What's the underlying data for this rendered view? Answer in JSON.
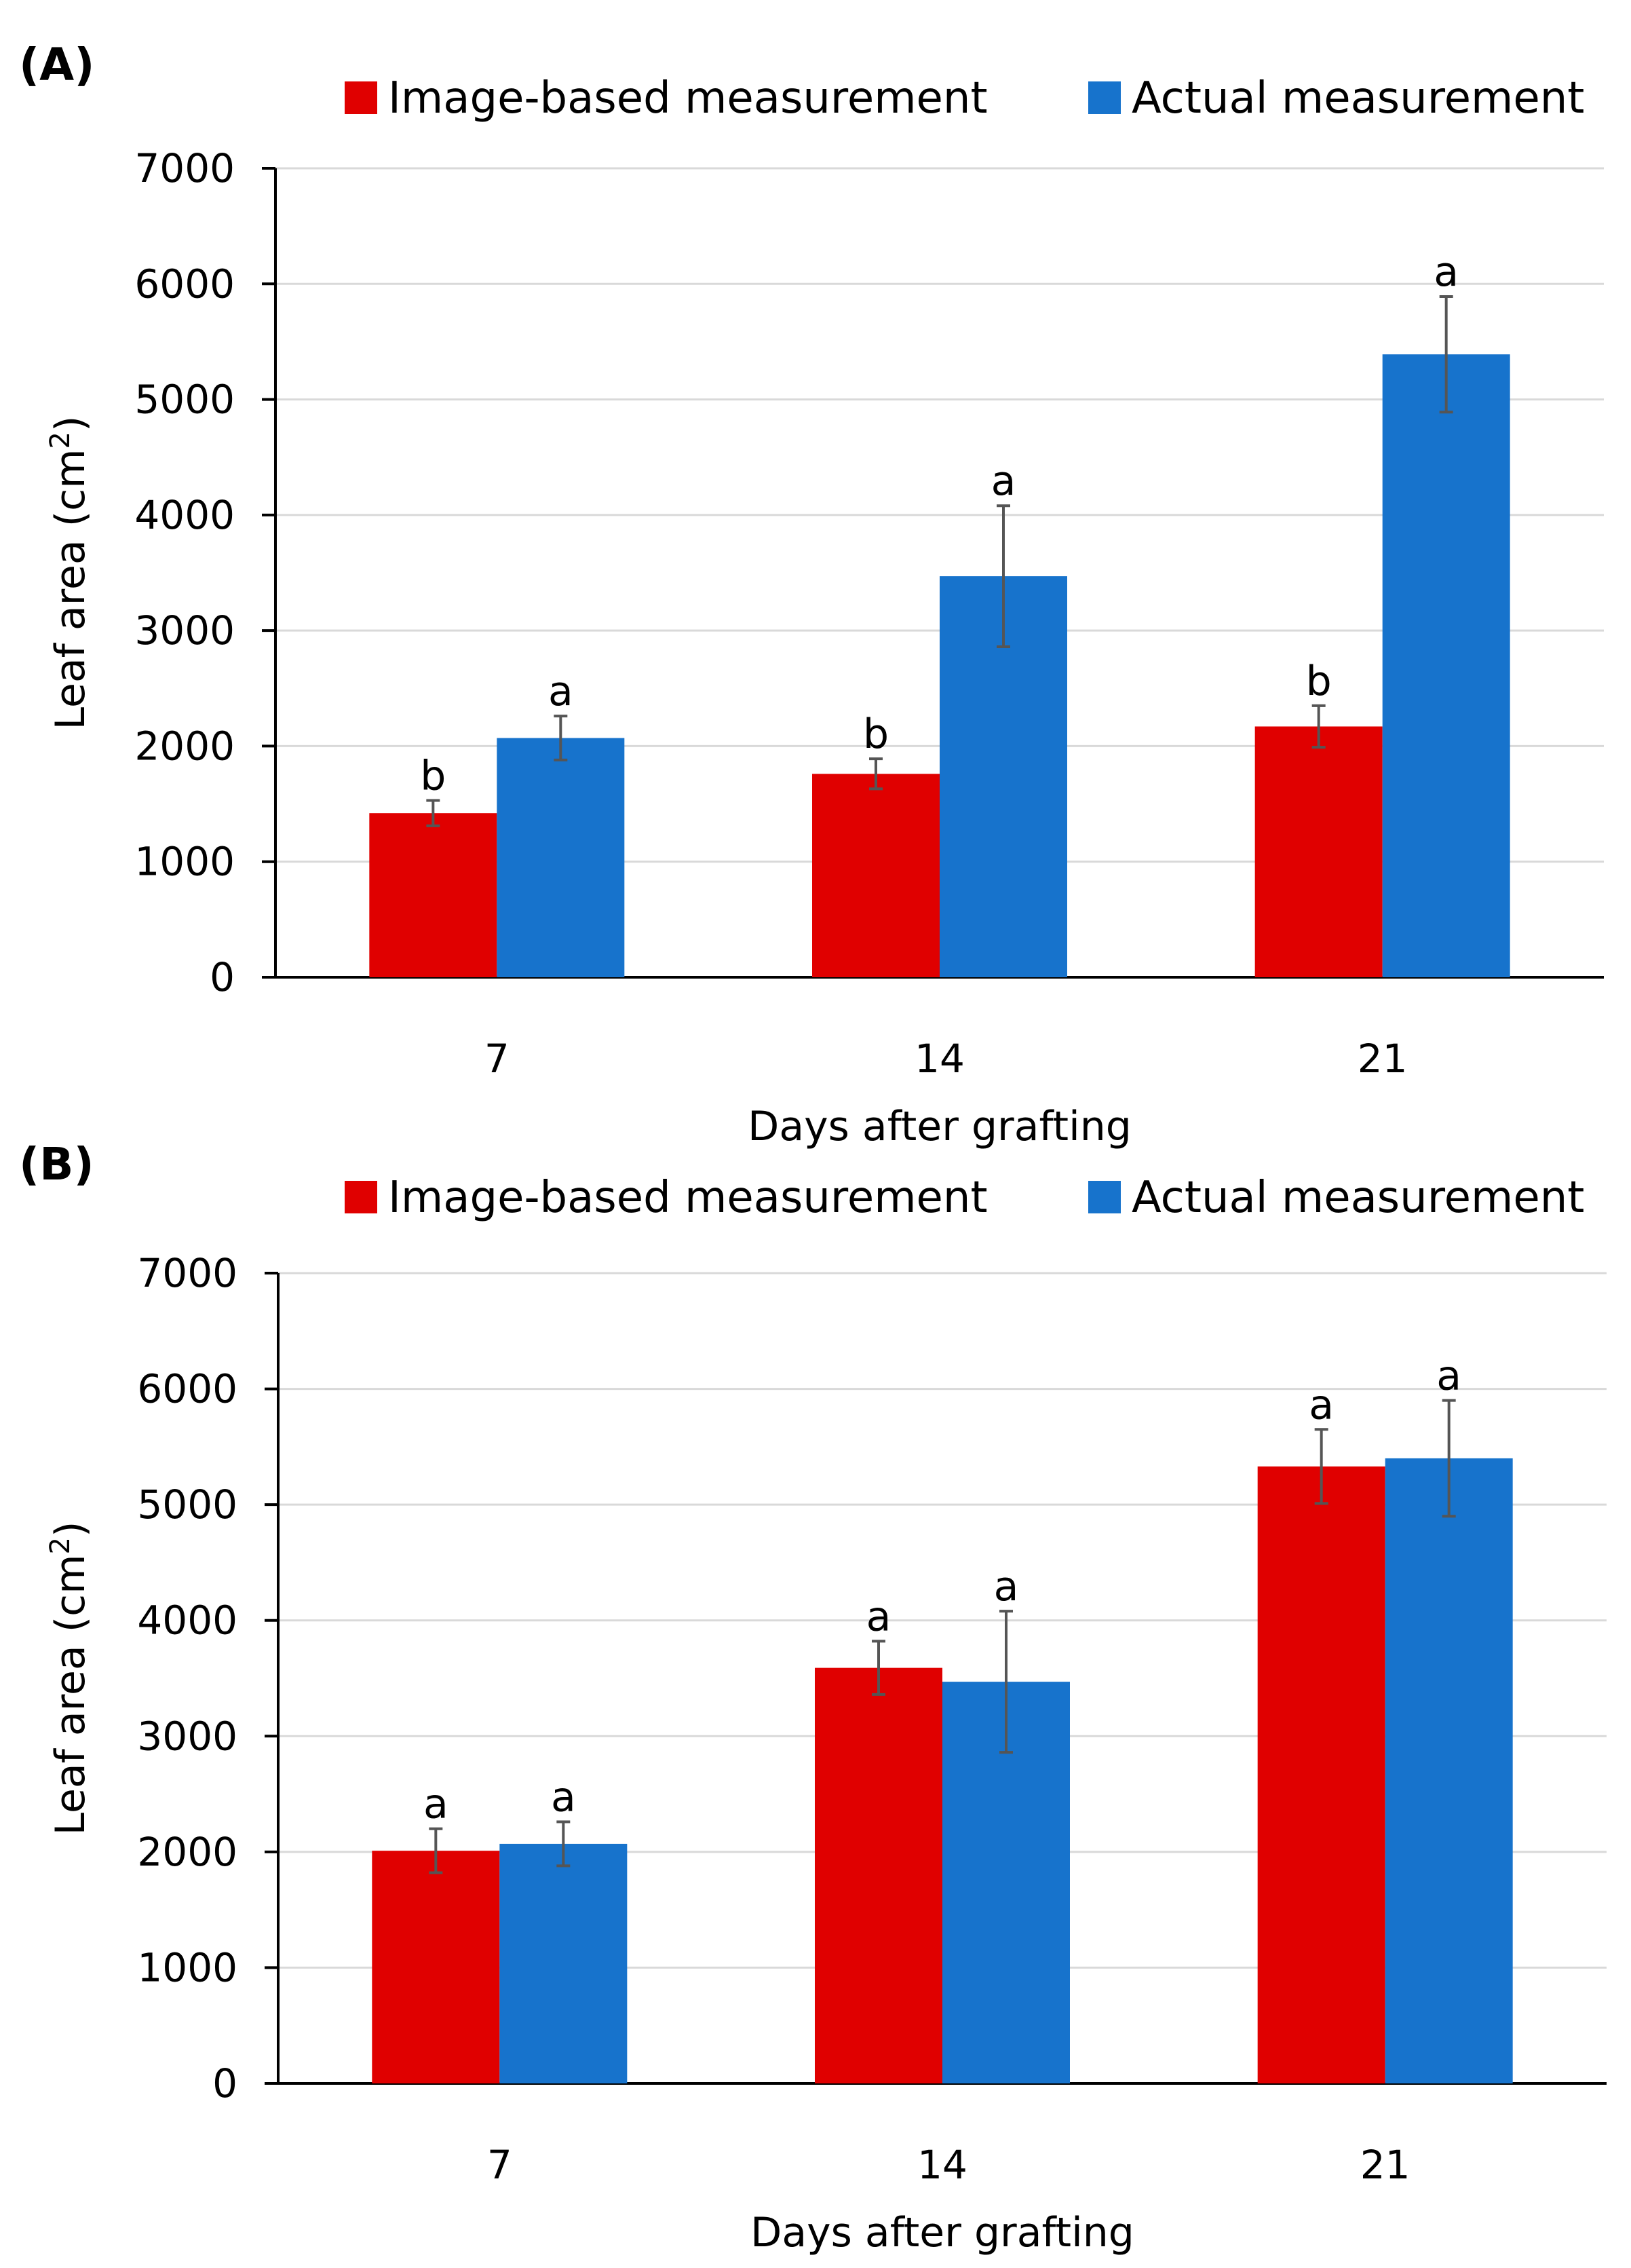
{
  "chart_data": [
    {
      "panel_label": "(A)",
      "type": "bar",
      "categories": [
        "7",
        "14",
        "21"
      ],
      "series": [
        {
          "name": "Image-based measurement",
          "color": "#E00000",
          "values": [
            1420,
            1760,
            2170
          ],
          "errors": [
            110,
            130,
            180
          ],
          "significance": [
            "b",
            "b",
            "b"
          ]
        },
        {
          "name": "Actual measurement",
          "color": "#1773CC",
          "values": [
            2070,
            3470,
            5390
          ],
          "errors": [
            190,
            610,
            500
          ],
          "significance": [
            "a",
            "a",
            "a"
          ]
        }
      ],
      "xlabel": "Days after grafting",
      "ylabel_main": "Leaf area (cm",
      "ylabel_sup": "2",
      "ylabel_tail": ")",
      "ylim": [
        0,
        7000
      ],
      "yticks": [
        "0",
        "1000",
        "2000",
        "3000",
        "4000",
        "5000",
        "6000",
        "7000"
      ],
      "grid": true,
      "legend_position": "top"
    },
    {
      "panel_label": "(B)",
      "type": "bar",
      "categories": [
        "7",
        "14",
        "21"
      ],
      "series": [
        {
          "name": "Image-based measurement",
          "color": "#E00000",
          "values": [
            2010,
            3590,
            5330
          ],
          "errors": [
            190,
            230,
            320
          ],
          "significance": [
            "a",
            "a",
            "a"
          ]
        },
        {
          "name": "Actual measurement",
          "color": "#1773CC",
          "values": [
            2070,
            3470,
            5400
          ],
          "errors": [
            190,
            610,
            500
          ],
          "significance": [
            "a",
            "a",
            "a"
          ]
        }
      ],
      "xlabel": "Days after grafting",
      "ylabel_main": "Leaf area (cm",
      "ylabel_sup": "2",
      "ylabel_tail": ")",
      "ylim": [
        0,
        7000
      ],
      "yticks": [
        "0",
        "1000",
        "2000",
        "3000",
        "4000",
        "5000",
        "6000",
        "7000"
      ],
      "grid": true,
      "legend_position": "top"
    }
  ]
}
